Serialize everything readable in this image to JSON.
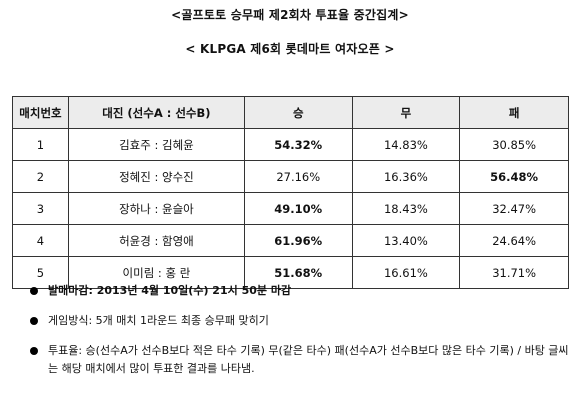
{
  "header": {
    "title": "<골프토토 승무패 제2회차 투표율 중간집계>",
    "subtitle": "< KLPGA 제6회 롯데마트 여자오픈 >"
  },
  "table": {
    "columns": [
      "매치번호",
      "대진 (선수A : 선수B)",
      "승",
      "무",
      "패"
    ],
    "rows": [
      {
        "no": "1",
        "match": "김효주 : 김혜윤",
        "win": "54.32%",
        "draw": "14.83%",
        "lose": "30.85%",
        "bold": "win"
      },
      {
        "no": "2",
        "match": "정혜진 : 양수진",
        "win": "27.16%",
        "draw": "16.36%",
        "lose": "56.48%",
        "bold": "lose"
      },
      {
        "no": "3",
        "match": "장하나 : 윤슬아",
        "win": "49.10%",
        "draw": "18.43%",
        "lose": "32.47%",
        "bold": "win"
      },
      {
        "no": "4",
        "match": "허윤경 : 함영애",
        "win": "61.96%",
        "draw": "13.40%",
        "lose": "24.64%",
        "bold": "win"
      },
      {
        "no": "5",
        "match": "이미림 : 홍 란",
        "win": "51.68%",
        "draw": "16.61%",
        "lose": "31.71%",
        "bold": "win"
      }
    ]
  },
  "notes": [
    {
      "text": "발매마감: 2013년 4월 10일(수) 21시 50분 마감",
      "bold": true
    },
    {
      "text": "게임방식: 5개 매치 1라운드 최종 승무패 맞히기",
      "bold": false
    },
    {
      "text": "투표율: 승(선수A가 선수B보다 적은 타수 기록) 무(같은 타수) 패(선수A가 선수B보다 많은 타수 기록) / 바탕 글씨는 해당 매치에서 많이 투표한 결과를 나타냄.",
      "bold": false
    }
  ]
}
